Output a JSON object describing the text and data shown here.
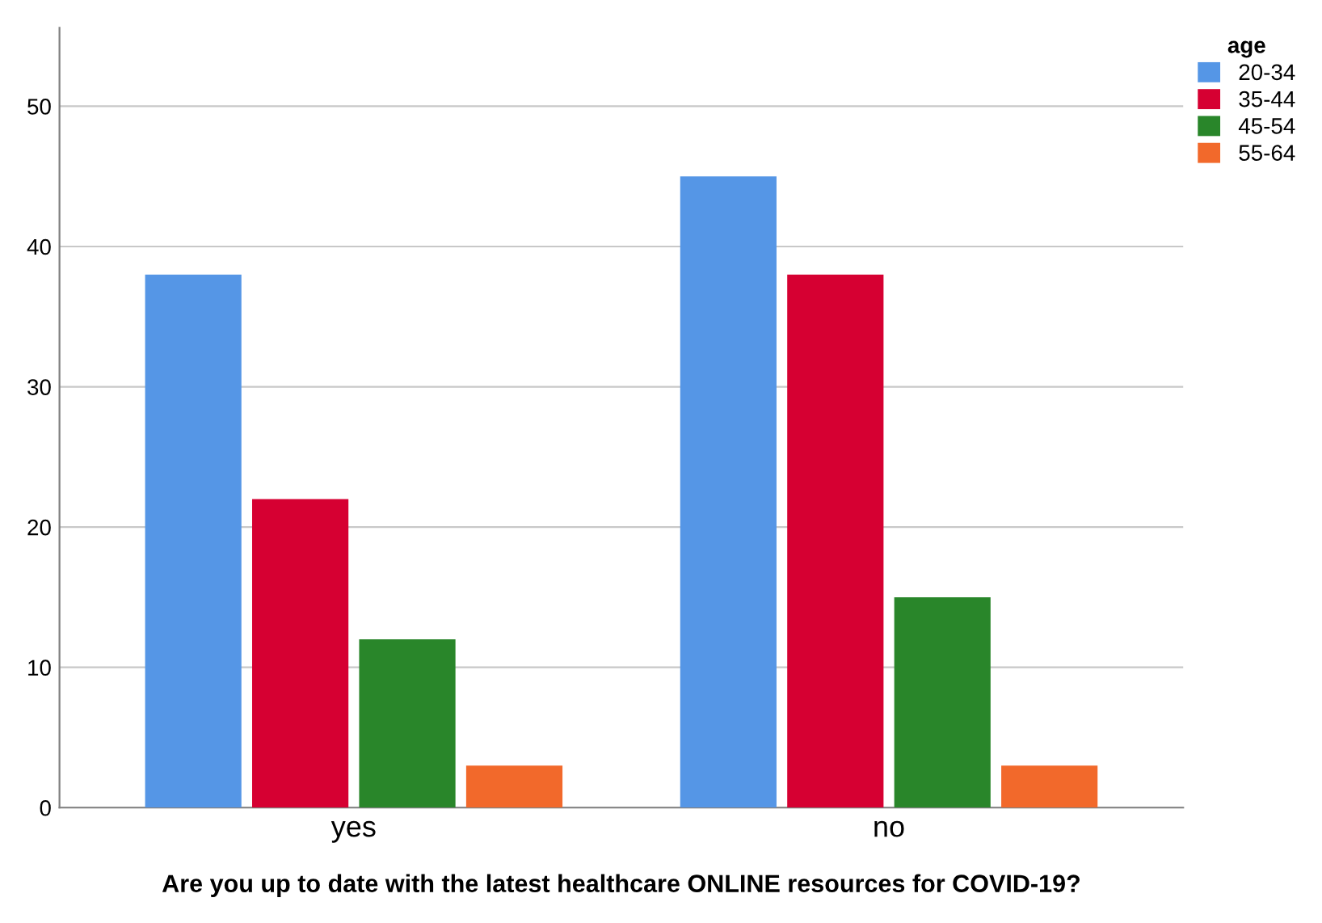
{
  "chart_data": {
    "type": "bar",
    "xlabel": "Are you up to date with the latest healthcare ONLINE resources for COVID-19?",
    "categories": [
      "yes",
      "no"
    ],
    "legend_title": "age",
    "series": [
      {
        "name": "20-34",
        "color": "#5596e6",
        "values": [
          38,
          45
        ]
      },
      {
        "name": "35-44",
        "color": "#d60032",
        "values": [
          22,
          38
        ]
      },
      {
        "name": "45-54",
        "color": "#29862a",
        "values": [
          12,
          15
        ]
      },
      {
        "name": "55-64",
        "color": "#f2692b",
        "values": [
          3,
          3
        ]
      }
    ],
    "ylim": [
      0,
      55.6
    ],
    "yticks": [
      0,
      10,
      20,
      30,
      40,
      50
    ],
    "grid": "y",
    "legend": "right"
  }
}
